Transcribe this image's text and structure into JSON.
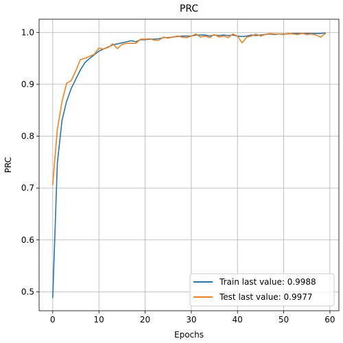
{
  "chart_data": {
    "type": "line",
    "title": "PRC",
    "xlabel": "Epochs",
    "ylabel": "PRC",
    "xlim": [
      -2.95,
      61.95
    ],
    "ylim": [
      0.4635,
      1.0255
    ],
    "xticks": [
      "0",
      "10",
      "20",
      "30",
      "40",
      "50",
      "60"
    ],
    "yticks": [
      "0.5",
      "0.6",
      "0.7",
      "0.8",
      "0.9",
      "1.0"
    ],
    "grid": true,
    "legend_position": "lower-right",
    "x": [
      0,
      1,
      2,
      3,
      4,
      5,
      6,
      7,
      8,
      9,
      10,
      11,
      12,
      13,
      14,
      15,
      16,
      17,
      18,
      19,
      20,
      21,
      22,
      23,
      24,
      25,
      26,
      27,
      28,
      29,
      30,
      31,
      32,
      33,
      34,
      35,
      36,
      37,
      38,
      39,
      40,
      41,
      42,
      43,
      44,
      45,
      46,
      47,
      48,
      49,
      50,
      51,
      52,
      53,
      54,
      55,
      56,
      57,
      58,
      59
    ],
    "series": [
      {
        "name": "Train last value: 0.9988",
        "color": "#1f77b4",
        "values": [
          0.489,
          0.748,
          0.83,
          0.867,
          0.892,
          0.91,
          0.928,
          0.942,
          0.95,
          0.957,
          0.964,
          0.968,
          0.972,
          0.976,
          0.978,
          0.98,
          0.982,
          0.984,
          0.982,
          0.986,
          0.986,
          0.987,
          0.987,
          0.988,
          0.99,
          0.99,
          0.991,
          0.992,
          0.993,
          0.993,
          0.993,
          0.995,
          0.995,
          0.995,
          0.993,
          0.995,
          0.994,
          0.995,
          0.994,
          0.995,
          0.993,
          0.992,
          0.993,
          0.995,
          0.994,
          0.995,
          0.996,
          0.997,
          0.996,
          0.997,
          0.997,
          0.997,
          0.998,
          0.998,
          0.998,
          0.998,
          0.998,
          0.998,
          0.998,
          0.9988
        ]
      },
      {
        "name": "Test last value: 0.9977",
        "color": "#ff7f0e",
        "values": [
          0.707,
          0.813,
          0.866,
          0.902,
          0.907,
          0.926,
          0.948,
          0.95,
          0.954,
          0.958,
          0.97,
          0.968,
          0.971,
          0.978,
          0.969,
          0.977,
          0.979,
          0.979,
          0.979,
          0.987,
          0.987,
          0.988,
          0.985,
          0.985,
          0.991,
          0.989,
          0.991,
          0.993,
          0.991,
          0.99,
          0.993,
          0.997,
          0.991,
          0.993,
          0.99,
          0.996,
          0.991,
          0.993,
          0.99,
          0.997,
          0.993,
          0.98,
          0.991,
          0.993,
          0.997,
          0.993,
          0.996,
          0.998,
          0.997,
          0.997,
          0.996,
          0.998,
          0.997,
          0.996,
          0.998,
          0.996,
          0.997,
          0.995,
          0.991,
          0.9977
        ]
      }
    ]
  }
}
